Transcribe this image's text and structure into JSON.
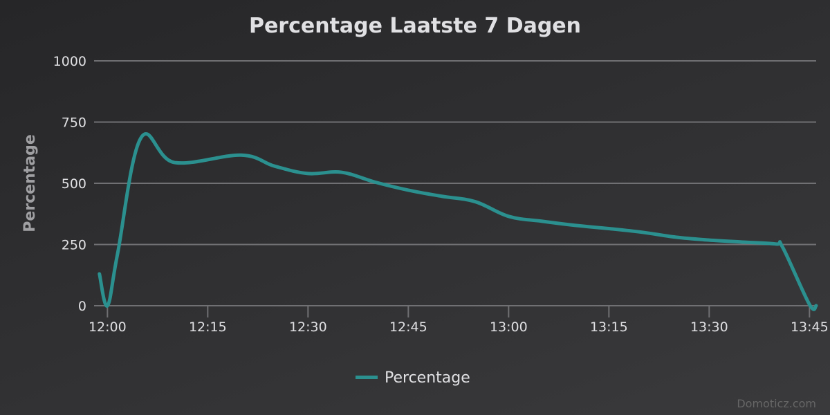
{
  "chart_data": {
    "type": "line",
    "title": "Percentage Laatste 7 Dagen",
    "ylabel": "Percentage",
    "xlabel": "",
    "ylim": [
      0,
      1000
    ],
    "yticks": [
      0,
      250,
      500,
      750,
      1000
    ],
    "xlim_minutes": [
      -2,
      106
    ],
    "x_tick_labels": [
      {
        "label": "12:00",
        "minutes": 0
      },
      {
        "label": "12:15",
        "minutes": 15
      },
      {
        "label": "12:30",
        "minutes": 30
      },
      {
        "label": "12:45",
        "minutes": 45
      },
      {
        "label": "13:00",
        "minutes": 60
      },
      {
        "label": "13:15",
        "minutes": 75
      },
      {
        "label": "13:30",
        "minutes": 90
      },
      {
        "label": "13:45",
        "minutes": 105
      }
    ],
    "series": [
      {
        "name": "Percentage",
        "color": "#2b908f",
        "points": [
          {
            "minutes": -1.2,
            "value": 130
          },
          {
            "minutes": 0,
            "value": 0
          },
          {
            "minutes": 1.5,
            "value": 210
          },
          {
            "minutes": 5,
            "value": 685
          },
          {
            "minutes": 10,
            "value": 585
          },
          {
            "minutes": 20,
            "value": 615
          },
          {
            "minutes": 25,
            "value": 570
          },
          {
            "minutes": 30,
            "value": 540
          },
          {
            "minutes": 35,
            "value": 545
          },
          {
            "minutes": 40,
            "value": 505
          },
          {
            "minutes": 45,
            "value": 472
          },
          {
            "minutes": 50,
            "value": 447
          },
          {
            "minutes": 55,
            "value": 425
          },
          {
            "minutes": 60,
            "value": 365
          },
          {
            "minutes": 65,
            "value": 345
          },
          {
            "minutes": 70,
            "value": 328
          },
          {
            "minutes": 75,
            "value": 315
          },
          {
            "minutes": 80,
            "value": 300
          },
          {
            "minutes": 85,
            "value": 280
          },
          {
            "minutes": 90,
            "value": 268
          },
          {
            "minutes": 95,
            "value": 260
          },
          {
            "minutes": 100,
            "value": 252
          },
          {
            "minutes": 101,
            "value": 238
          },
          {
            "minutes": 105,
            "value": 5
          },
          {
            "minutes": 106,
            "value": 0
          }
        ]
      }
    ],
    "legend": {
      "position": "bottom-center",
      "entries": [
        "Percentage"
      ]
    },
    "credits": "Domoticz.com"
  }
}
